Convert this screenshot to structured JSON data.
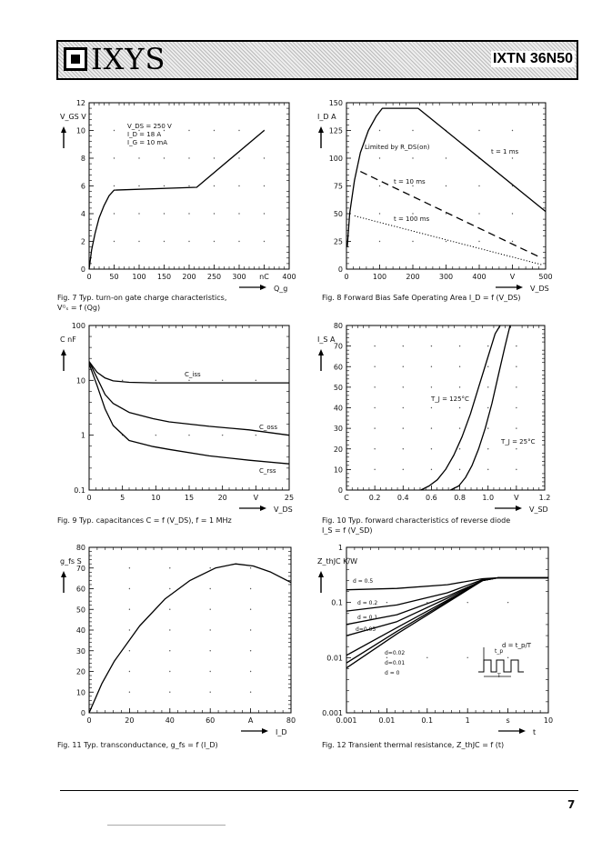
{
  "header": {
    "logo_text": "IXYS",
    "part_number": "IXTN 36N50"
  },
  "page_number": "7",
  "chart_data": [
    {
      "id": "fig7",
      "type": "line",
      "title": "Fig. 7 Typ. turn-on gate charge characteristics,",
      "title2": "Vᴳₛ = f (Qg)",
      "ylabel": "V_GS V",
      "xlabel": "Q_g",
      "x_unit": "nC",
      "xlim": [
        0,
        400
      ],
      "ylim": [
        0,
        12
      ],
      "xticks": [
        0,
        50,
        100,
        150,
        200,
        250,
        300,
        "nC",
        400
      ],
      "yticks": [
        0,
        2,
        4,
        6,
        8,
        10,
        12
      ],
      "annotations": [
        "V_DS = 250 V",
        "I_D = 18 A",
        "I_G = 10 mA"
      ],
      "series": [
        {
          "name": "Vgs",
          "x": [
            0,
            5,
            12,
            20,
            30,
            40,
            50,
            215,
            350
          ],
          "y": [
            0,
            1.4,
            2.6,
            3.7,
            4.6,
            5.3,
            5.7,
            5.9,
            10
          ]
        }
      ]
    },
    {
      "id": "fig8",
      "type": "line",
      "title": "Fig. 8 Forward Bias Safe Operating Area I_D = f (V_DS)",
      "ylabel": "I_D A",
      "xlabel": "V_DS",
      "x_unit": "V",
      "xlim": [
        0,
        500
      ],
      "ylim": [
        0,
        150
      ],
      "xticks": [
        0,
        100,
        200,
        300,
        400,
        "V",
        500
      ],
      "yticks": [
        0,
        25,
        50,
        75,
        100,
        125,
        150
      ],
      "annotations": [
        "Limited by R_DS(on)",
        "t = 1 ms",
        "t = 10 ms",
        "t = 100 ms"
      ],
      "series": [
        {
          "name": "t = 1 ms",
          "style": "solid",
          "x": [
            2,
            8,
            20,
            35,
            55,
            75,
            90,
            180,
            500
          ],
          "y": [
            20,
            50,
            80,
            105,
            125,
            138,
            145,
            145,
            52
          ]
        },
        {
          "name": "t = 10 ms",
          "style": "dashed",
          "x": [
            35,
            490
          ],
          "y": [
            88,
            10
          ]
        },
        {
          "name": "t = 100 ms",
          "style": "dotted",
          "x": [
            20,
            490
          ],
          "y": [
            48,
            4
          ]
        }
      ]
    },
    {
      "id": "fig9",
      "type": "line",
      "title": "Fig. 9 Typ. capacitances C = f (V_DS), f = 1 MHz",
      "ylabel": "C nF",
      "xlabel": "V_DS",
      "x_unit": "V",
      "xlim": [
        0,
        25
      ],
      "ylim": [
        0.1,
        100
      ],
      "yscale": "log",
      "xticks": [
        0,
        5,
        10,
        15,
        20,
        "V",
        25
      ],
      "yticks": [
        "0.1",
        "1",
        "10",
        "100"
      ],
      "series": [
        {
          "name": "C_iss",
          "x": [
            0,
            1,
            2,
            3,
            5,
            8,
            12,
            18,
            25
          ],
          "y": [
            22,
            14,
            11,
            9.8,
            9.2,
            9.0,
            9.0,
            9.0,
            9.0
          ]
        },
        {
          "name": "C_oss",
          "x": [
            0,
            1,
            2,
            3,
            5,
            8,
            10,
            15,
            20,
            25
          ],
          "y": [
            22,
            11,
            5.5,
            3.8,
            2.6,
            2.0,
            1.75,
            1.45,
            1.25,
            1.0
          ]
        },
        {
          "name": "C_rss",
          "x": [
            0,
            1,
            2,
            3,
            5,
            8,
            10,
            15,
            20,
            25
          ],
          "y": [
            20,
            8,
            3.0,
            1.5,
            0.8,
            0.62,
            0.55,
            0.42,
            0.35,
            0.3
          ]
        }
      ]
    },
    {
      "id": "fig10",
      "type": "line",
      "title": "Fig. 10 Typ. forward characteristics of reverse diode",
      "title2": "I_S = f (V_SD)",
      "ylabel": "I_S A",
      "xlabel": "V_SD",
      "x_unit": "V",
      "xlim": [
        0,
        1.2
      ],
      "ylim": [
        0,
        80
      ],
      "xticks": [
        "C",
        "0.2",
        "0.4",
        "0.6",
        "0.8",
        "1.0",
        "V",
        "1.2"
      ],
      "yticks": [
        0,
        10,
        20,
        30,
        40,
        50,
        60,
        70,
        80
      ],
      "annotations": [
        "T_J = 125°C",
        "T_J = 25°C"
      ],
      "series": [
        {
          "name": "T_J = 125°C",
          "x": [
            0.45,
            0.5,
            0.55,
            0.6,
            0.65,
            0.7,
            0.75,
            0.8,
            0.85,
            0.9,
            0.93
          ],
          "y": [
            0,
            2,
            5,
            10,
            17,
            26,
            37,
            50,
            63,
            76,
            80
          ]
        },
        {
          "name": "T_J = 25°C",
          "x": [
            0.63,
            0.68,
            0.72,
            0.76,
            0.8,
            0.84,
            0.88,
            0.92,
            0.96,
            0.99
          ],
          "y": [
            0,
            2,
            6,
            12,
            20,
            30,
            42,
            56,
            70,
            80
          ]
        }
      ]
    },
    {
      "id": "fig11",
      "type": "line",
      "title": "Fig. 11 Typ. transconductance, g_fs = f (I_D)",
      "ylabel": "g_fs S",
      "xlabel": "I_D",
      "x_unit": "A",
      "xlim": [
        0,
        80
      ],
      "ylim": [
        0,
        80
      ],
      "xticks": [
        0,
        20,
        40,
        60,
        "A",
        80
      ],
      "yticks": [
        0,
        10,
        20,
        30,
        40,
        50,
        60,
        70,
        80
      ],
      "series": [
        {
          "name": "gfs",
          "x": [
            0,
            5,
            10,
            20,
            30,
            40,
            50,
            58,
            65,
            72,
            80
          ],
          "y": [
            0,
            14,
            25,
            42,
            55,
            64,
            70,
            72,
            71,
            68,
            63
          ]
        }
      ]
    },
    {
      "id": "fig12",
      "type": "line",
      "title": "Fig. 12 Transient thermal resistance, Z_thJC = f (t)",
      "ylabel": "Z_thJC K/W",
      "xlabel": "t",
      "x_unit": "s",
      "xlim": [
        0.001,
        10
      ],
      "ylim": [
        0.001,
        1
      ],
      "xscale": "log",
      "yscale": "log",
      "xticks": [
        "0.001",
        "0.01",
        "0.1",
        "1",
        "s",
        "10"
      ],
      "yticks": [
        "0.001",
        "0.01",
        "0.1",
        "1"
      ],
      "annotations": [
        "d = 0.5",
        "d = 0.2",
        "d = 0.1",
        "d=0.05",
        "d=0.02",
        "d=0.01",
        "d = 0",
        "d = t_p/T",
        "t_p",
        "T"
      ],
      "series": [
        {
          "name": "d = 0.5",
          "x": [
            0.001,
            0.01,
            0.1,
            0.5,
            1,
            10
          ],
          "y": [
            0.17,
            0.18,
            0.21,
            0.27,
            0.28,
            0.28
          ]
        },
        {
          "name": "d = 0.2",
          "x": [
            0.001,
            0.01,
            0.1,
            0.5,
            1,
            10
          ],
          "y": [
            0.07,
            0.09,
            0.15,
            0.26,
            0.28,
            0.28
          ]
        },
        {
          "name": "d = 0.1",
          "x": [
            0.001,
            0.01,
            0.1,
            0.5,
            1,
            10
          ],
          "y": [
            0.04,
            0.06,
            0.13,
            0.25,
            0.28,
            0.28
          ]
        },
        {
          "name": "d = 0.05",
          "x": [
            0.001,
            0.01,
            0.1,
            0.5,
            1,
            10
          ],
          "y": [
            0.025,
            0.045,
            0.12,
            0.25,
            0.28,
            0.28
          ]
        },
        {
          "name": "d = 0.02",
          "x": [
            0.001,
            0.01,
            0.1,
            0.5,
            1,
            10
          ],
          "y": [
            0.011,
            0.035,
            0.11,
            0.25,
            0.28,
            0.28
          ]
        },
        {
          "name": "d = 0.01",
          "x": [
            0.001,
            0.01,
            0.1,
            0.5,
            1,
            10
          ],
          "y": [
            0.008,
            0.03,
            0.105,
            0.25,
            0.28,
            0.28
          ]
        },
        {
          "name": "d = 0",
          "x": [
            0.001,
            0.01,
            0.1,
            0.5,
            1,
            10
          ],
          "y": [
            0.0065,
            0.027,
            0.1,
            0.25,
            0.28,
            0.28
          ]
        }
      ]
    }
  ]
}
